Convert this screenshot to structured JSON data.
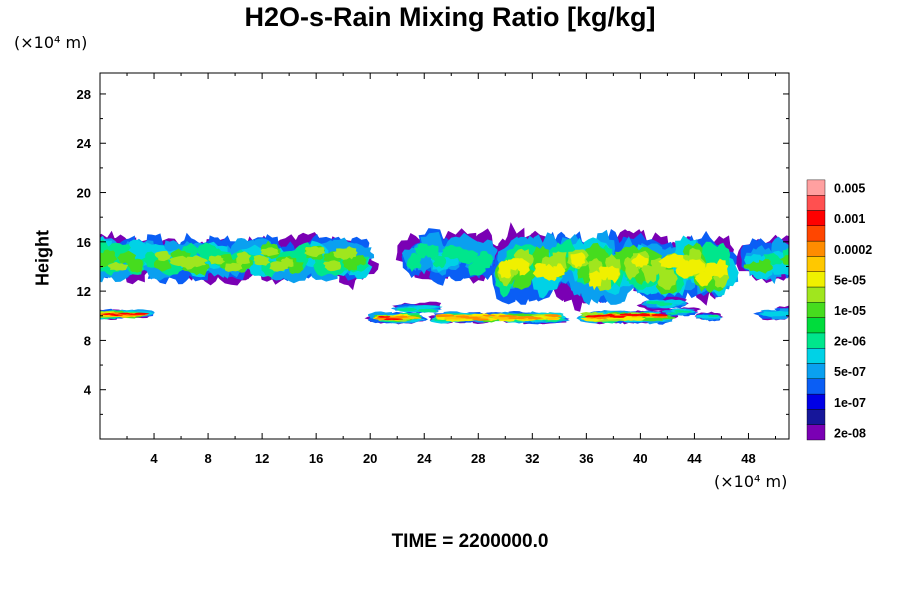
{
  "chart_data": {
    "type": "heatmap",
    "title": "H2O-s-Rain Mixing Ratio [kg/kg]",
    "ylabel": "Height",
    "x_unit": "(×10⁴ m)",
    "y_unit": "(×10⁴ m)",
    "x_ticks": [
      4,
      8,
      12,
      16,
      20,
      24,
      28,
      32,
      36,
      40,
      44,
      48
    ],
    "y_ticks": [
      4,
      8,
      12,
      16,
      20,
      24,
      28
    ],
    "xlim": [
      0,
      51
    ],
    "ylim": [
      0,
      29.7
    ],
    "grid": false,
    "footer": "TIME = 2200000.0",
    "legend": {
      "placement": "right",
      "labels": [
        "0.005",
        "0.001",
        "0.0002",
        "5e-05",
        "1e-05",
        "2e-06",
        "5e-07",
        "1e-07",
        "2e-08"
      ],
      "colors": [
        "#7a00b4",
        "#16169a",
        "#0000e6",
        "#0a5ef5",
        "#0aa0f0",
        "#00d2e6",
        "#00e68c",
        "#00dc3c",
        "#46dc1e",
        "#a0e61e",
        "#f0f000",
        "#ffc800",
        "#ff8c00",
        "#ff4600",
        "#ff0000",
        "#ff5050",
        "#ffa0a0"
      ]
    },
    "regions": [
      {
        "x": [
          0,
          19.2
        ],
        "y": [
          13.2,
          16.0
        ],
        "level": "1e-05 to 5e-05"
      },
      {
        "x": [
          0,
          3.0
        ],
        "y": [
          9.8,
          10.4
        ],
        "level": "0.001"
      },
      {
        "x": [
          21.0,
          23.0
        ],
        "y": [
          9.5,
          10.2
        ],
        "level": "0.001"
      },
      {
        "x": [
          23.2,
          28.5
        ],
        "y": [
          13.0,
          16.3
        ],
        "level": "1e-06 to 1e-05"
      },
      {
        "x": [
          25.5,
          33.5
        ],
        "y": [
          9.5,
          10.2
        ],
        "level": "0.0002"
      },
      {
        "x": [
          30.0,
          46.0
        ],
        "y": [
          11.7,
          16.0
        ],
        "level": "5e-05"
      },
      {
        "x": [
          36.5,
          41.5
        ],
        "y": [
          9.5,
          10.3
        ],
        "level": "0.001"
      },
      {
        "x": [
          48.5,
          51.0
        ],
        "y": [
          13.0,
          15.9
        ],
        "level": "1e-05"
      }
    ]
  }
}
